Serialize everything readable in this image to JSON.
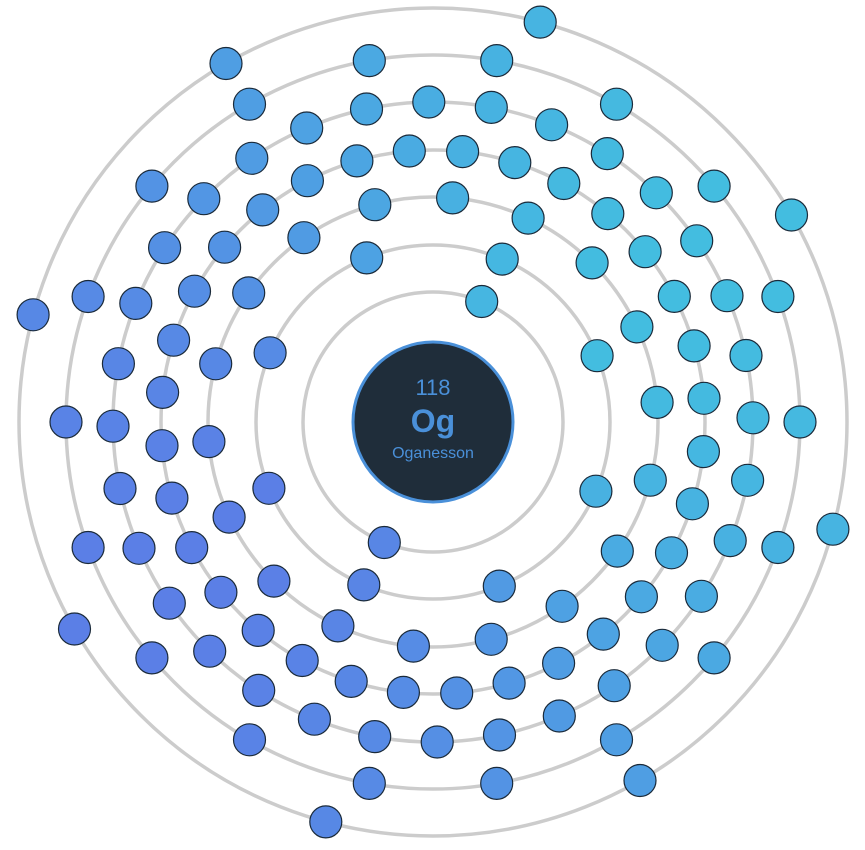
{
  "element": {
    "atomic_number": "118",
    "symbol": "Og",
    "name": "Oganesson"
  },
  "chart_data": {
    "type": "bohr-model",
    "shells": [
      {
        "index": 1,
        "electrons": 2,
        "offset_deg": 68
      },
      {
        "index": 2,
        "electrons": 8,
        "offset_deg": 22
      },
      {
        "index": 3,
        "electrons": 18,
        "offset_deg": 5
      },
      {
        "index": 4,
        "electrons": 32,
        "offset_deg": 5
      },
      {
        "index": 5,
        "electrons": 32,
        "offset_deg": 12
      },
      {
        "index": 6,
        "electrons": 18,
        "offset_deg": 20
      },
      {
        "index": 7,
        "electrons": 8,
        "offset_deg": 30
      }
    ]
  },
  "colors": {
    "electron_start": "#5b7fe6",
    "electron_end": "#43bde0",
    "shell": "#cccccc",
    "nucleus_fill": "#1f2d3a",
    "nucleus_accent": "#4a90d9"
  }
}
